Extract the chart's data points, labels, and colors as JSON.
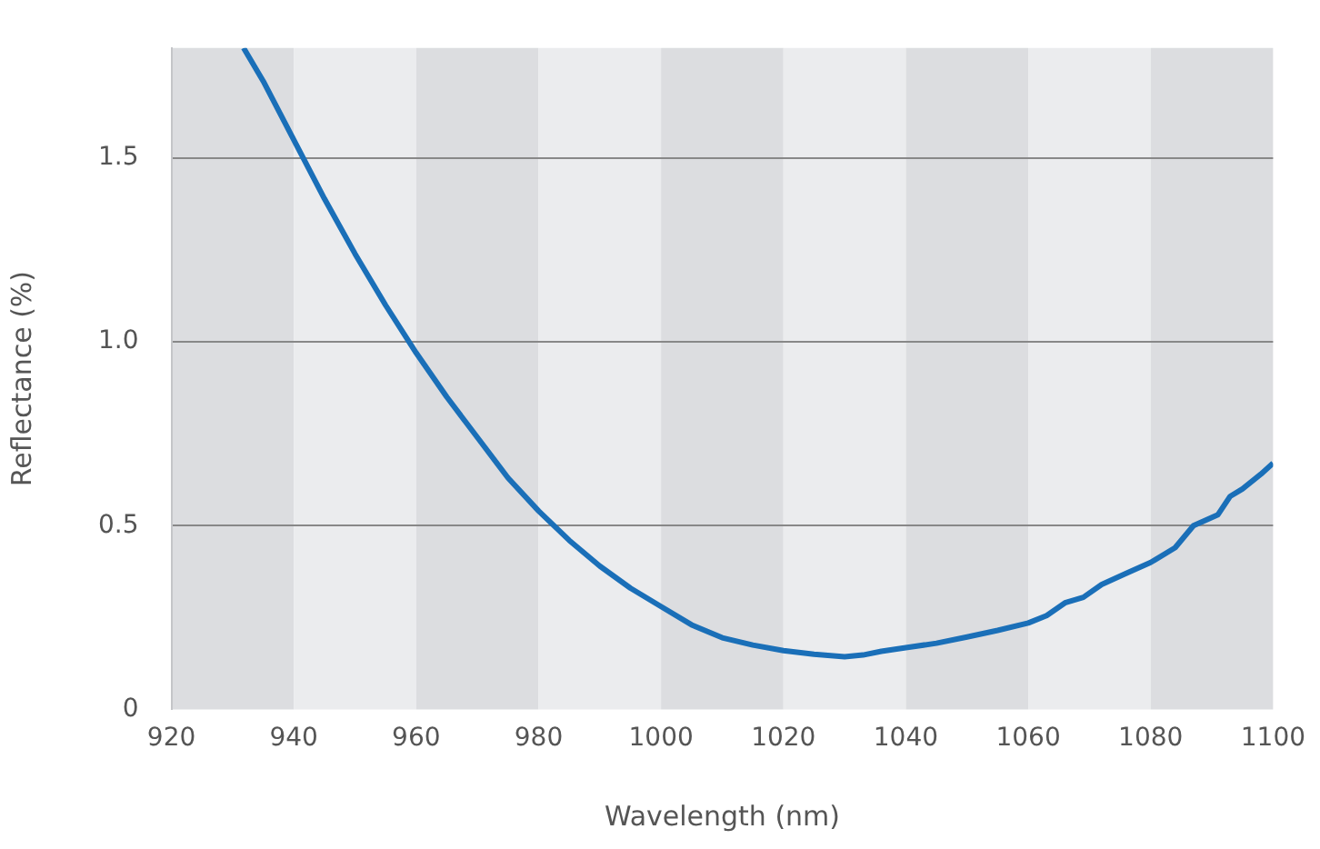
{
  "chart_data": {
    "type": "line",
    "xlabel": "Wavelength (nm)",
    "ylabel": "Reflectance (%)",
    "x": [
      931.8,
      935,
      940,
      945,
      950,
      955,
      960,
      965,
      970,
      975,
      980,
      985,
      990,
      995,
      1000,
      1005,
      1010,
      1015,
      1020,
      1025,
      1030,
      1033,
      1036,
      1040,
      1045,
      1050,
      1055,
      1060,
      1063,
      1066,
      1069,
      1072,
      1076,
      1080,
      1084,
      1087,
      1091,
      1093,
      1095,
      1098,
      1100
    ],
    "series": [
      {
        "color": "#1a6fb8",
        "values": [
          1.8,
          1.71,
          1.55,
          1.39,
          1.24,
          1.1,
          0.97,
          0.85,
          0.74,
          0.63,
          0.54,
          0.46,
          0.39,
          0.33,
          0.28,
          0.23,
          0.195,
          0.175,
          0.16,
          0.15,
          0.143,
          0.148,
          0.158,
          0.168,
          0.18,
          0.197,
          0.215,
          0.235,
          0.255,
          0.29,
          0.305,
          0.34,
          0.37,
          0.4,
          0.44,
          0.5,
          0.53,
          0.58,
          0.6,
          0.64,
          0.67
        ]
      }
    ],
    "xlim": [
      920,
      1100
    ],
    "xticks": [
      920,
      940,
      960,
      980,
      1000,
      1020,
      1040,
      1060,
      1080,
      1100
    ],
    "ylim": [
      0,
      1.8
    ],
    "yticks": [
      0,
      0.5,
      {
        "value": 1,
        "label": "1.0"
      },
      1.5
    ],
    "grid": "y",
    "line_style": "solid",
    "marker": "none",
    "legend": false,
    "bands": [
      {
        "axis": "x",
        "from": 920,
        "to": 940,
        "color": "#dcdde0"
      },
      {
        "axis": "x",
        "from": 940,
        "to": 960,
        "color": "#ebecee"
      },
      {
        "axis": "x",
        "from": 960,
        "to": 980,
        "color": "#dcdde0"
      },
      {
        "axis": "x",
        "from": 980,
        "to": 1000,
        "color": "#ebecee"
      },
      {
        "axis": "x",
        "from": 1000,
        "to": 1020,
        "color": "#dcdde0"
      },
      {
        "axis": "x",
        "from": 1020,
        "to": 1040,
        "color": "#ebecee"
      },
      {
        "axis": "x",
        "from": 1040,
        "to": 1060,
        "color": "#dcdde0"
      },
      {
        "axis": "x",
        "from": 1060,
        "to": 1080,
        "color": "#ebecee"
      },
      {
        "axis": "x",
        "from": 1080,
        "to": 1100,
        "color": "#dcdde0"
      }
    ]
  }
}
